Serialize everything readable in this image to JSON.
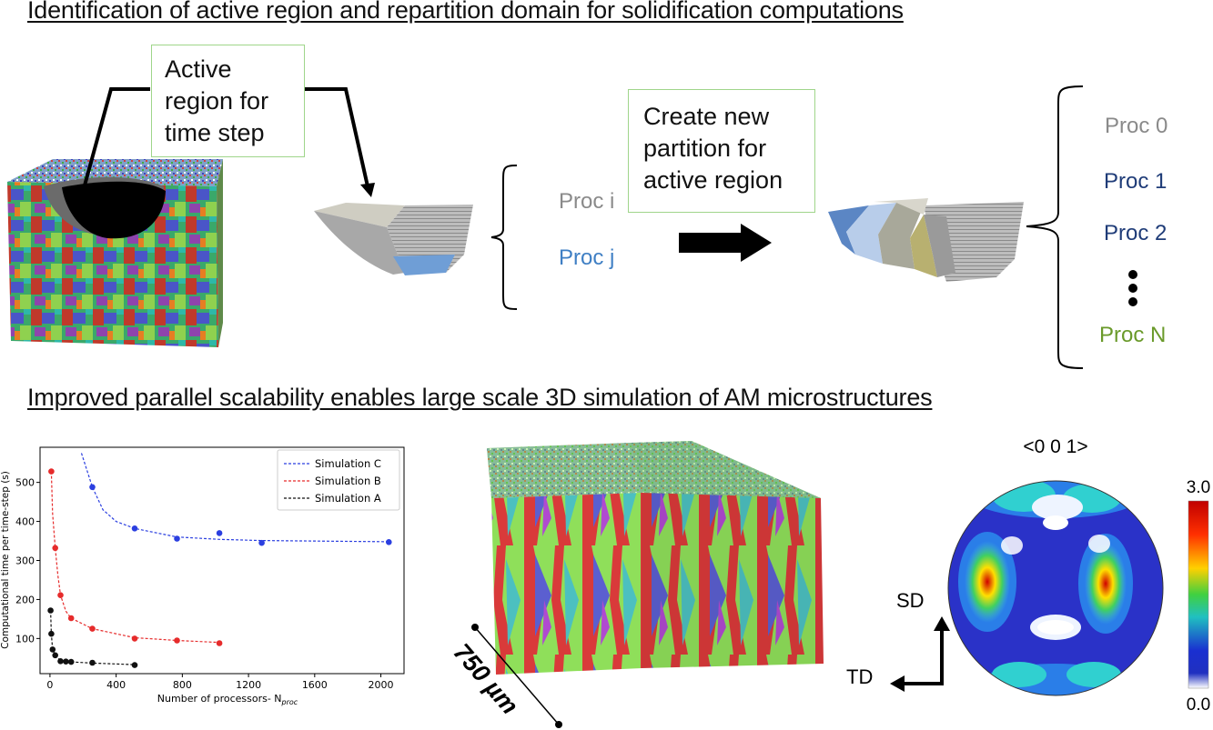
{
  "headings": {
    "top": "Identification of active region and repartition domain for solidification computations",
    "bottom": "Improved parallel scalability enables large scale 3D simulation of AM microstructures"
  },
  "callouts": {
    "active_region": "Active region for time step",
    "create_partition": "Create new partition for active region"
  },
  "partition_before": [
    {
      "label": "Proc i",
      "color": "#8a8a8a"
    },
    {
      "label": "Proc j",
      "color": "#3f7fc4"
    }
  ],
  "partition_after": [
    {
      "label": "Proc 0",
      "color": "#8a8a8a"
    },
    {
      "label": "Proc 1",
      "color": "#1f3c78"
    },
    {
      "label": "Proc 2",
      "color": "#1f3c78"
    },
    {
      "label": "Proc N",
      "color": "#6a9a2a"
    }
  ],
  "scale_bar": "750 µm",
  "pole_figure": {
    "title": "<0 0 1>",
    "axis_sd": "SD",
    "axis_td": "TD",
    "colorbar_max": "3.0",
    "colorbar_min": "0.0"
  },
  "chart_data": {
    "type": "scatter",
    "xlabel": "Number of processors- N",
    "xlabel_sub": "proc",
    "ylabel": "Computational time per time-step (s)",
    "xlim": [
      -60,
      2140
    ],
    "ylim": [
      10,
      590
    ],
    "xticks": [
      0,
      400,
      800,
      1200,
      1600,
      2000
    ],
    "yticks": [
      100,
      200,
      300,
      400,
      500
    ],
    "grid": false,
    "legend_position": "top-right",
    "series": [
      {
        "name": "Simulation C",
        "color": "#2b3fe0",
        "x": [
          256,
          512,
          768,
          1024,
          1280,
          2048
        ],
        "y": [
          488,
          382,
          356,
          370,
          345,
          347
        ],
        "fit": [
          [
            190,
            575
          ],
          [
            256,
            488
          ],
          [
            320,
            430
          ],
          [
            400,
            400
          ],
          [
            512,
            382
          ],
          [
            768,
            360
          ],
          [
            1024,
            354
          ],
          [
            1280,
            351
          ],
          [
            2048,
            348
          ]
        ]
      },
      {
        "name": "Simulation B",
        "color": "#e62b2b",
        "x": [
          8,
          32,
          64,
          128,
          256,
          512,
          768,
          1024
        ],
        "y": [
          528,
          332,
          211,
          152,
          125,
          100,
          95,
          88
        ],
        "fit": [
          [
            8,
            528
          ],
          [
            16,
            420
          ],
          [
            32,
            332
          ],
          [
            48,
            262
          ],
          [
            64,
            211
          ],
          [
            96,
            170
          ],
          [
            128,
            152
          ],
          [
            256,
            125
          ],
          [
            512,
            102
          ],
          [
            768,
            95
          ],
          [
            1024,
            90
          ]
        ]
      },
      {
        "name": "Simulation A",
        "color": "#111111",
        "x": [
          4,
          8,
          16,
          32,
          64,
          96,
          128,
          256,
          512
        ],
        "y": [
          172,
          112,
          72,
          57,
          42,
          41,
          40,
          38,
          32
        ],
        "fit": [
          [
            4,
            172
          ],
          [
            8,
            112
          ],
          [
            16,
            72
          ],
          [
            32,
            57
          ],
          [
            64,
            44
          ],
          [
            128,
            40
          ],
          [
            256,
            37
          ],
          [
            512,
            33
          ]
        ]
      }
    ]
  }
}
